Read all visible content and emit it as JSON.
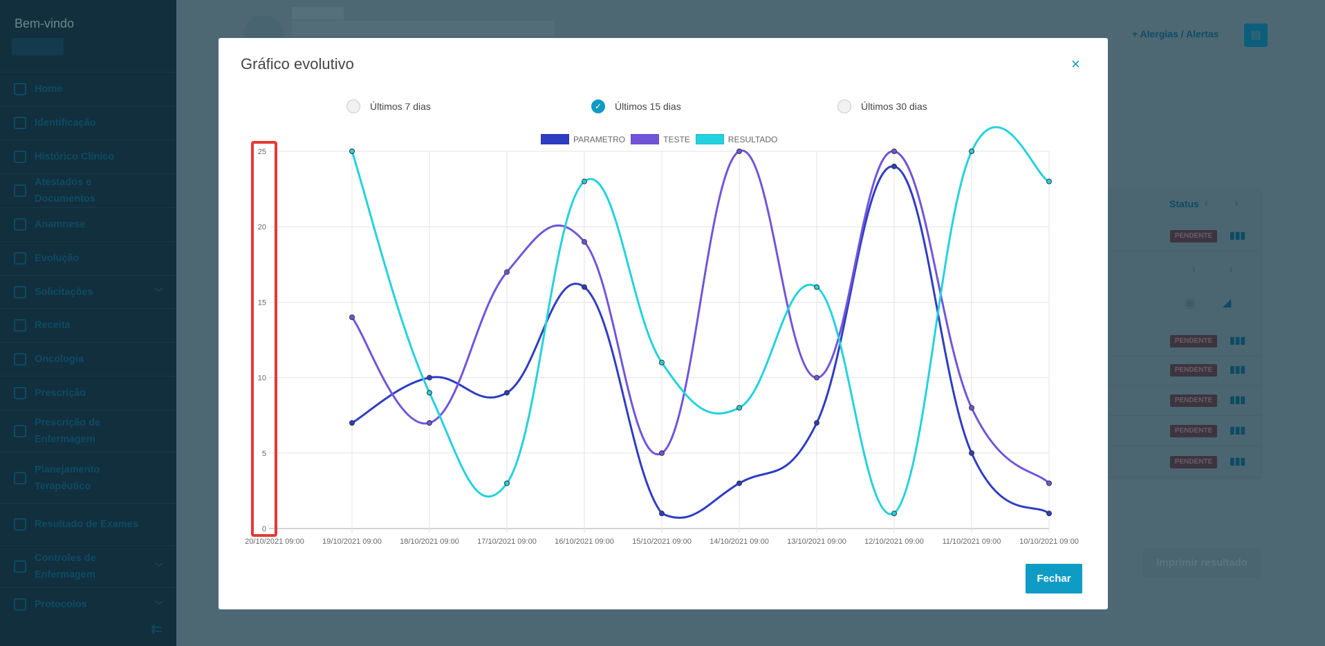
{
  "sidebar": {
    "welcome": "Bem-vindo",
    "items": [
      {
        "label": "Home",
        "icon": "home-icon"
      },
      {
        "label": "Identificação",
        "icon": "info-icon"
      },
      {
        "label": "Histórico Clínico",
        "icon": "history-icon"
      },
      {
        "label": "Atestados e Documentos",
        "icon": "document-icon"
      },
      {
        "label": "Anamnese",
        "icon": "pencil-icon"
      },
      {
        "label": "Evolução",
        "icon": "pencil-icon"
      },
      {
        "label": "Solicitações",
        "icon": "clipboard-icon",
        "chevron": true
      },
      {
        "label": "Receita",
        "icon": "document-icon"
      },
      {
        "label": "Oncologia",
        "icon": "document-icon"
      },
      {
        "label": "Prescrição",
        "icon": "document-icon"
      },
      {
        "label": "Prescrição de Enfermagem",
        "icon": "document-icon"
      },
      {
        "label": "Planejamento Terapêutico",
        "icon": "document-icon"
      },
      {
        "label": "Resultado de Exames",
        "icon": "document-icon"
      },
      {
        "label": "Controles de Enfermagem",
        "icon": "clipboard-icon",
        "chevron": true
      },
      {
        "label": "Protocolos",
        "icon": "clipboard-icon",
        "chevron": true
      }
    ]
  },
  "header": {
    "alergias": "+ Alergias / Alertas"
  },
  "table": {
    "status_header": "Status",
    "badge": "PENDENTE",
    "print": "Imprimir resultado"
  },
  "modal": {
    "title": "Gráfico evolutivo",
    "close": "×",
    "fechar": "Fechar",
    "periods": [
      {
        "label": "Últimos 7 dias",
        "selected": false
      },
      {
        "label": "Últimos 15 dias",
        "selected": true
      },
      {
        "label": "Últimos 30 dias",
        "selected": false
      }
    ]
  },
  "chart_data": {
    "type": "line",
    "title": "",
    "xlabel": "",
    "ylabel": "",
    "ylim": [
      0,
      25
    ],
    "yticks": [
      0,
      5,
      10,
      15,
      20,
      25
    ],
    "grid": true,
    "legend": "top",
    "categories": [
      "20/10/2021 09:00",
      "19/10/2021 09:00",
      "18/10/2021 09:00",
      "17/10/2021 09:00",
      "16/10/2021 09:00",
      "15/10/2021 09:00",
      "14/10/2021 09:00",
      "13/10/2021 09:00",
      "12/10/2021 09:00",
      "11/10/2021 09:00",
      "10/10/2021 09:00"
    ],
    "series": [
      {
        "name": "PARAMETRO",
        "color": "#2e3dc2",
        "values": [
          null,
          7,
          10,
          9,
          16,
          1,
          3,
          7,
          24,
          5,
          1
        ]
      },
      {
        "name": "TESTE",
        "color": "#7254db",
        "values": [
          null,
          14,
          7,
          17,
          19,
          5,
          25,
          10,
          25,
          8,
          3
        ]
      },
      {
        "name": "RESULTADO",
        "color": "#22d2de",
        "values": [
          null,
          25,
          9,
          3,
          23,
          11,
          8,
          16,
          1,
          25,
          23
        ]
      }
    ]
  }
}
